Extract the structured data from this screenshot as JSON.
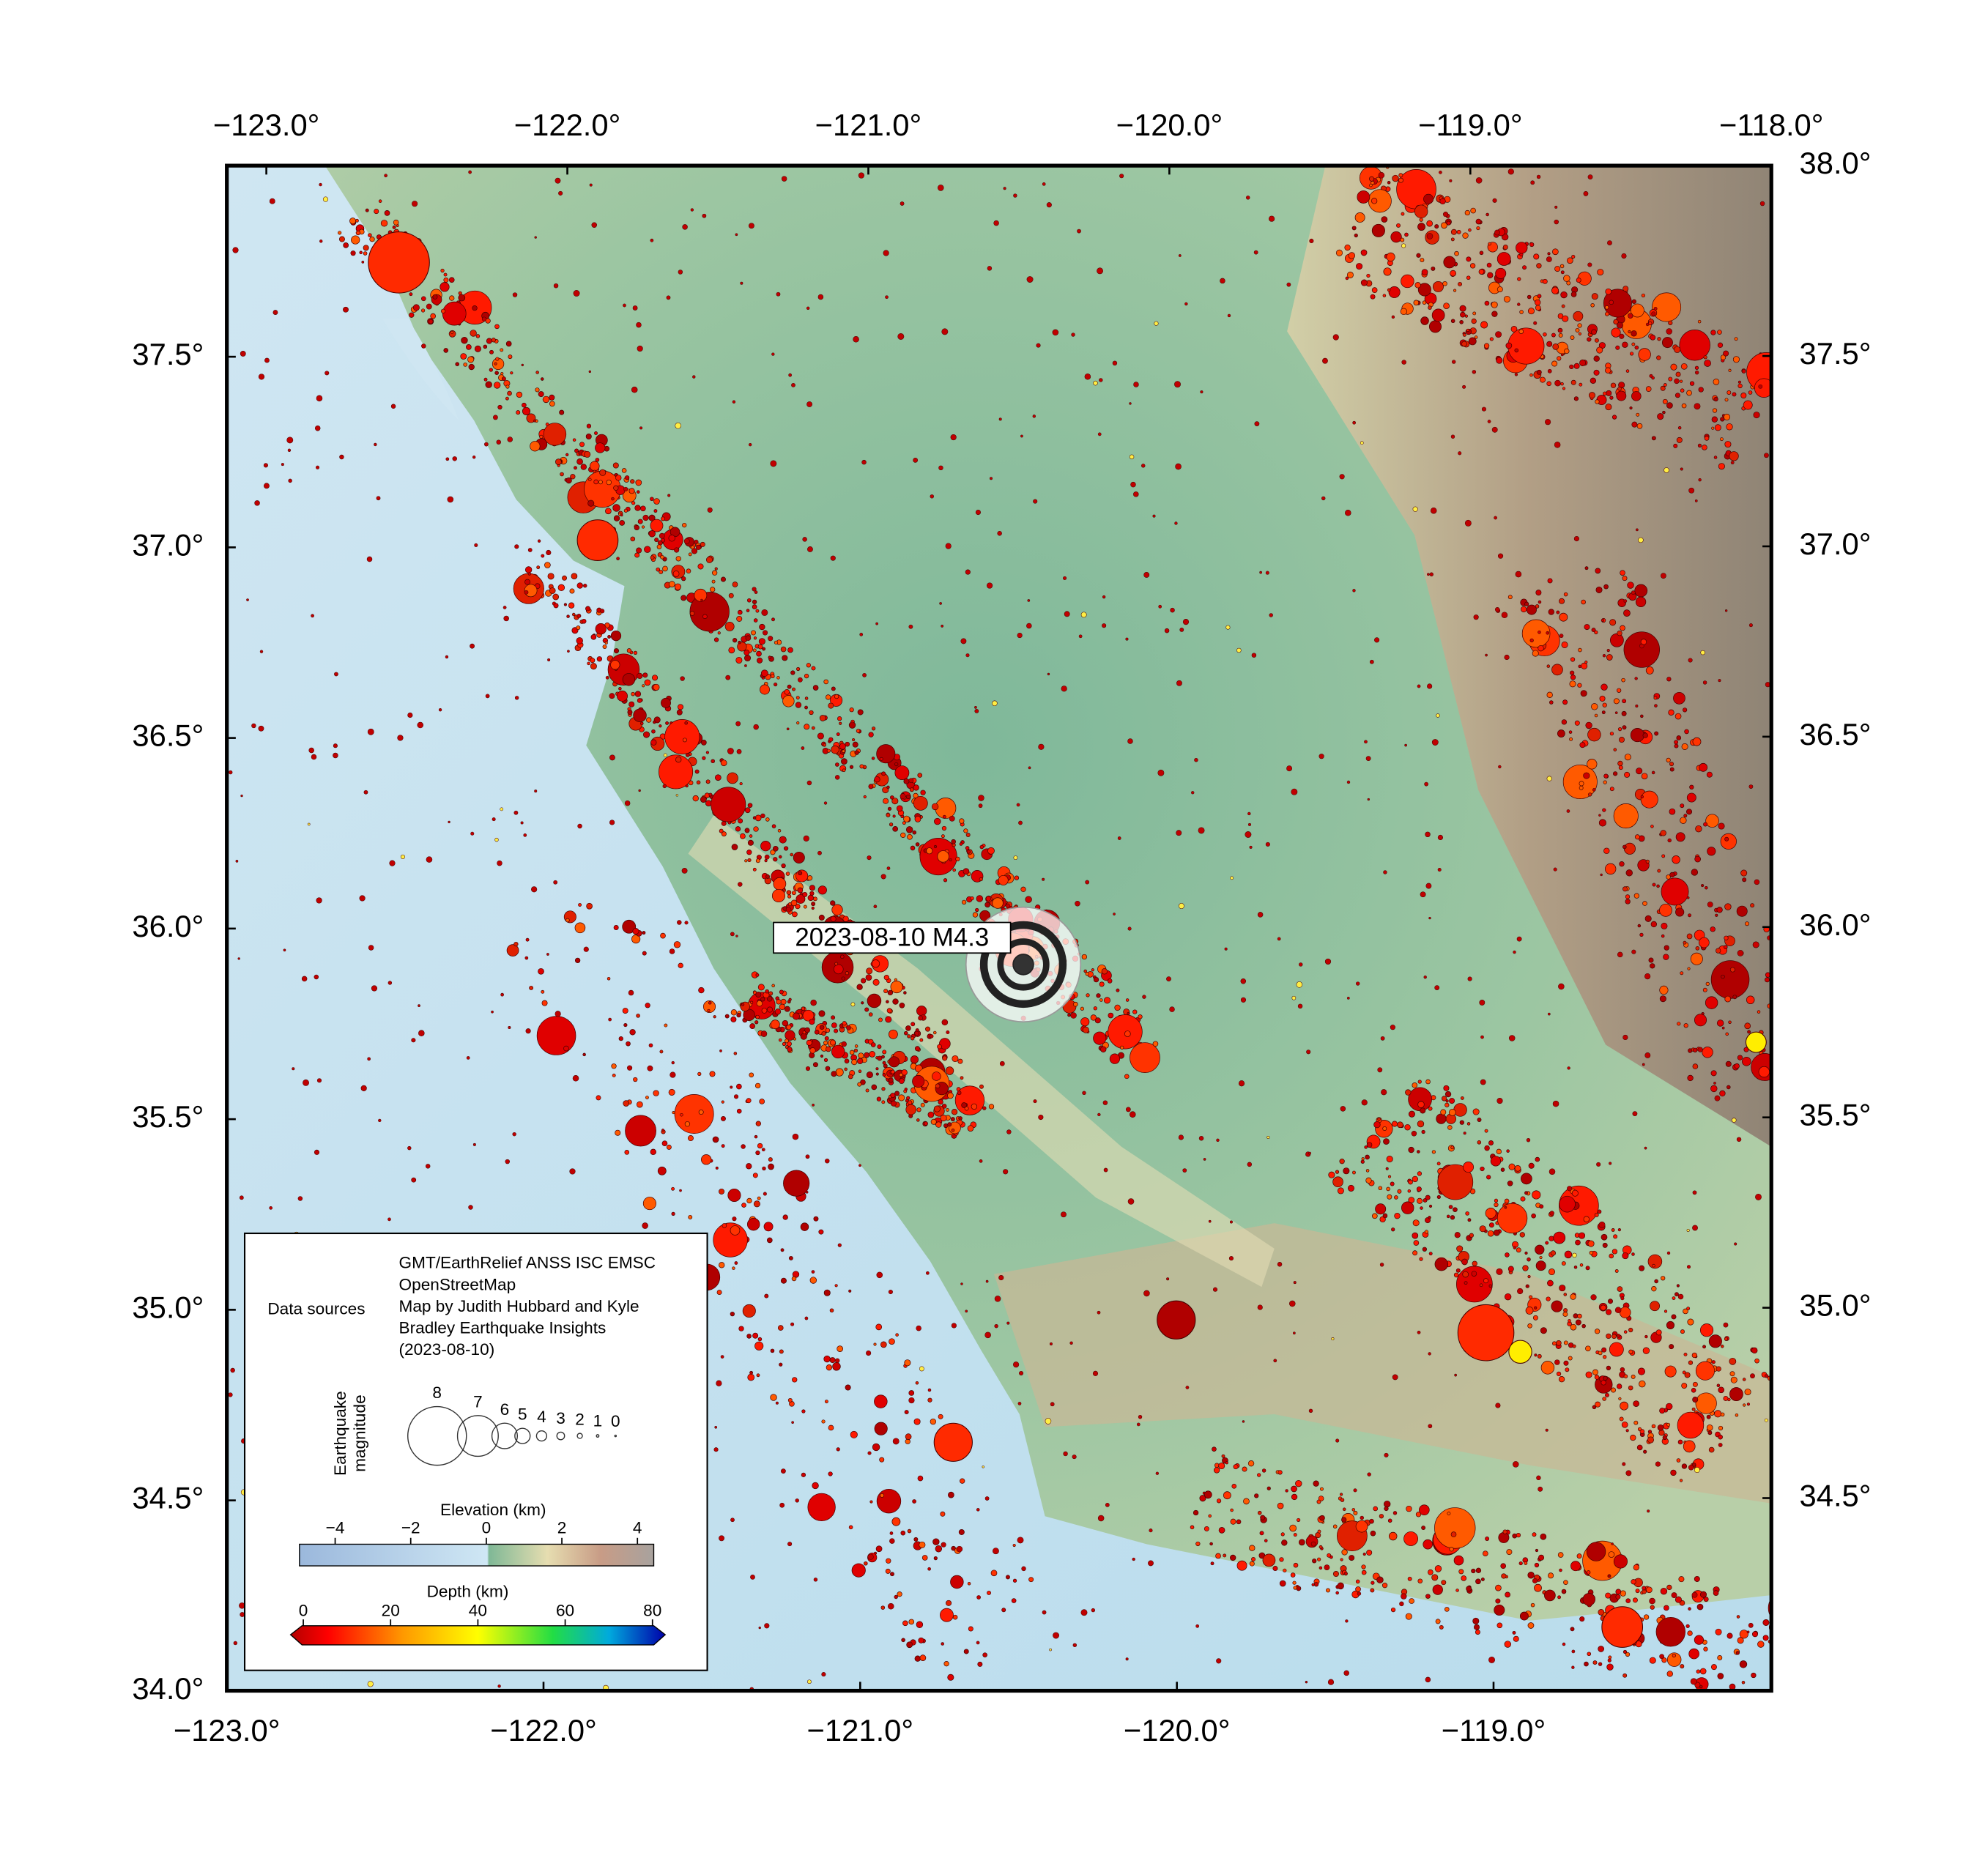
{
  "map": {
    "annotation": "2023-08-10 M4.3",
    "top_ticks": [
      "−123.0°",
      "−122.0°",
      "−121.0°",
      "−120.0°",
      "−119.0°",
      "−118.0°"
    ],
    "bottom_ticks": [
      "−123.0°",
      "−122.0°",
      "−121.0°",
      "−120.0°",
      "−119.0°"
    ],
    "left_ticks": [
      "37.5°",
      "37.0°",
      "36.5°",
      "36.0°",
      "35.5°",
      "35.0°",
      "34.5°",
      "34.0°"
    ],
    "right_ticks": [
      "38.0°",
      "37.5°",
      "37.0°",
      "36.5°",
      "36.0°",
      "35.5°",
      "35.0°",
      "34.5°"
    ]
  },
  "legend": {
    "data_sources_label": "Data sources",
    "data_sources": [
      "GMT/EarthRelief ANSS ISC EMSC",
      "OpenStreetMap",
      "Map by Judith Hubbard and Kyle",
      "Bradley Earthquake Insights",
      "(2023-08-10)"
    ],
    "magnitude_title": [
      "Earthquake",
      "magnitude"
    ],
    "magnitude_labels": [
      8,
      7,
      6,
      5,
      4,
      3,
      2,
      1,
      0
    ],
    "elevation_title": "Elevation (km)",
    "elevation_ticks": [
      "−4",
      "−2",
      "0",
      "2",
      "4"
    ],
    "depth_title": "Depth (km)",
    "depth_ticks": [
      0,
      20,
      40,
      60,
      80
    ]
  }
}
